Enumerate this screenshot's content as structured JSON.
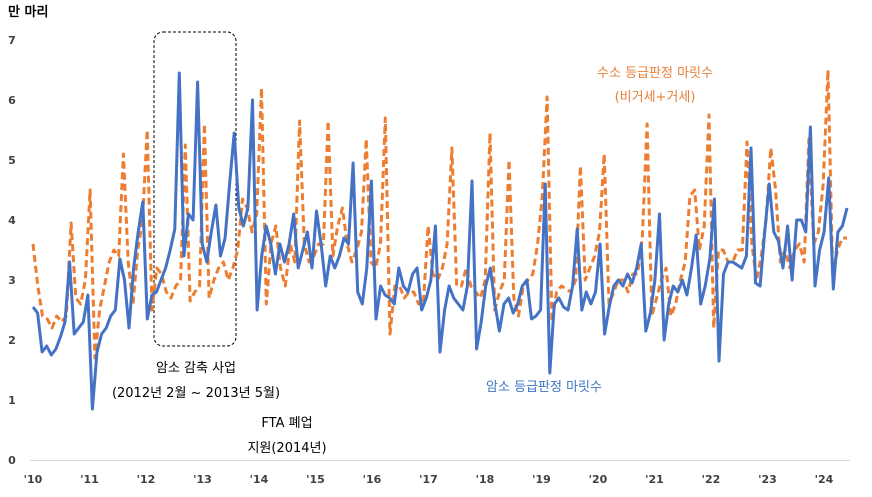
{
  "chart_data": {
    "type": "line",
    "ylabel": "만 마리",
    "ylim": [
      0,
      7
    ],
    "y_ticks": [
      "0",
      "1",
      "2",
      "3",
      "4",
      "5",
      "6",
      "7"
    ],
    "x_ticks": [
      "'10",
      "'11",
      "'12",
      "'13",
      "'14",
      "'15",
      "'16",
      "'17",
      "'18",
      "'19",
      "'20",
      "'21",
      "'22",
      "'23",
      "'24"
    ],
    "annotations": {
      "box_line1": "암소 감축 사업",
      "box_line2": "(2012년 2월 ~ 2013년 5월)",
      "fta_line1": "FTA 폐업",
      "fta_line2": "지원(2014년)"
    },
    "series": [
      {
        "name": "암소 등급판정 마릿수",
        "color": "#4472c4",
        "style": "solid",
        "values": [
          2.55,
          2.45,
          1.8,
          1.9,
          1.75,
          1.85,
          2.05,
          2.3,
          3.3,
          2.1,
          2.2,
          2.3,
          2.75,
          0.85,
          1.8,
          2.1,
          2.2,
          2.4,
          2.5,
          3.35,
          3.0,
          2.2,
          3.2,
          3.8,
          4.3,
          2.35,
          2.75,
          2.8,
          3.0,
          3.2,
          3.5,
          3.85,
          6.45,
          3.4,
          4.1,
          4.0,
          6.3,
          3.6,
          3.3,
          3.8,
          4.25,
          3.4,
          3.7,
          4.6,
          5.45,
          4.2,
          3.9,
          4.2,
          6.0,
          2.5,
          3.4,
          3.9,
          3.6,
          3.1,
          3.6,
          3.3,
          3.6,
          4.1,
          3.2,
          3.5,
          3.8,
          3.2,
          4.15,
          3.6,
          2.9,
          3.4,
          3.2,
          3.4,
          3.7,
          3.6,
          4.95,
          2.8,
          2.6,
          3.2,
          4.65,
          2.35,
          2.9,
          2.75,
          2.7,
          2.6,
          3.2,
          2.9,
          2.8,
          3.1,
          3.2,
          2.5,
          2.7,
          3.0,
          3.9,
          1.8,
          2.5,
          2.9,
          2.7,
          2.6,
          2.5,
          2.9,
          4.65,
          1.85,
          2.3,
          2.9,
          3.2,
          2.6,
          2.15,
          2.6,
          2.7,
          2.45,
          2.6,
          2.9,
          3.0,
          2.35,
          2.4,
          2.5,
          4.6,
          1.45,
          2.6,
          2.7,
          2.55,
          2.5,
          2.9,
          3.85,
          2.5,
          2.8,
          2.6,
          2.8,
          3.6,
          2.1,
          2.55,
          2.9,
          3.0,
          2.9,
          3.1,
          2.95,
          3.2,
          3.6,
          2.15,
          2.45,
          3.0,
          4.1,
          2.0,
          2.6,
          2.9,
          2.8,
          3.0,
          2.75,
          3.2,
          3.75,
          2.6,
          2.9,
          3.35,
          4.35,
          1.65,
          3.1,
          3.3,
          3.3,
          3.25,
          3.2,
          3.4,
          5.2,
          2.95,
          2.9,
          3.8,
          4.6,
          3.8,
          3.65,
          3.2,
          3.9,
          3.0,
          4.0,
          4.0,
          3.8,
          5.55,
          2.9,
          3.5,
          3.8,
          4.7,
          2.85,
          3.8,
          3.9,
          4.2
        ]
      },
      {
        "name": "수소 등급판정 마릿수 (비거세+거세)",
        "color": "#ed7d31",
        "style": "dashed",
        "values": [
          3.6,
          2.9,
          2.4,
          2.35,
          2.2,
          2.4,
          2.3,
          2.4,
          3.95,
          2.7,
          2.6,
          3.0,
          4.5,
          1.7,
          2.5,
          2.9,
          3.3,
          3.5,
          3.4,
          5.1,
          3.3,
          2.6,
          3.5,
          4.0,
          5.5,
          2.5,
          3.2,
          3.1,
          2.8,
          2.7,
          2.9,
          3.0,
          5.25,
          2.65,
          2.8,
          2.9,
          5.6,
          2.7,
          3.0,
          3.2,
          3.3,
          3.0,
          3.2,
          3.5,
          4.35,
          4.2,
          3.8,
          4.1,
          6.2,
          2.6,
          3.6,
          3.9,
          3.2,
          2.9,
          3.6,
          3.3,
          5.65,
          3.6,
          3.3,
          3.4,
          3.6,
          3.6,
          5.65,
          3.4,
          3.9,
          4.2,
          3.6,
          3.3,
          3.5,
          3.8,
          5.35,
          3.3,
          3.2,
          3.6,
          5.7,
          2.1,
          2.9,
          2.9,
          2.7,
          2.8,
          2.8,
          2.6,
          2.6,
          3.9,
          3.1,
          3.0,
          3.2,
          3.6,
          5.2,
          2.9,
          2.9,
          3.2,
          2.9,
          2.8,
          2.7,
          3.0,
          5.45,
          2.5,
          2.8,
          3.0,
          5.0,
          2.7,
          2.4,
          2.9,
          3.0,
          3.1,
          3.6,
          4.4,
          6.05,
          2.3,
          2.8,
          2.9,
          2.85,
          2.8,
          3.0,
          4.9,
          3.0,
          3.2,
          3.4,
          3.8,
          5.1,
          2.6,
          2.8,
          3.0,
          3.0,
          2.8,
          3.1,
          3.1,
          3.7,
          5.6,
          2.4,
          2.7,
          3.0,
          3.2,
          2.4,
          2.6,
          3.0,
          3.3,
          4.4,
          4.5,
          3.5,
          3.9,
          5.75,
          2.2,
          3.5,
          3.5,
          3.3,
          3.3,
          3.5,
          3.5,
          5.3,
          3.6,
          3.0,
          3.4,
          4.0,
          5.2,
          4.5,
          3.3,
          3.5,
          3.2,
          3.5,
          3.6,
          3.3,
          5.35,
          3.6,
          3.8,
          4.6,
          6.5,
          3.1,
          3.5,
          3.7,
          3.7
        ]
      }
    ]
  }
}
